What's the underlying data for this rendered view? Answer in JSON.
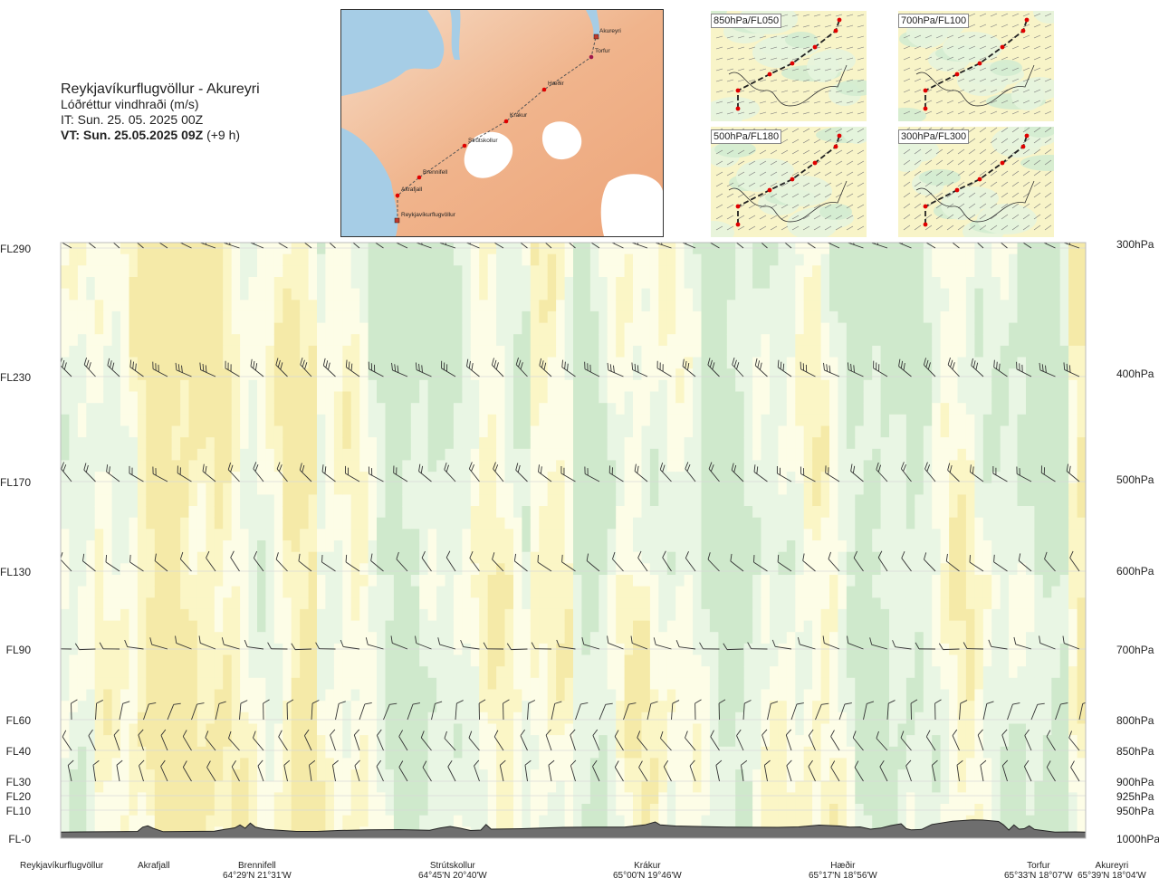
{
  "header": {
    "route": "Reykjavíkurflugvöllur - Akureyri",
    "param": "Lóðréttur vindhraði (m/s)",
    "it": "IT: Sun. 25. 05. 2025 00Z",
    "vt": "VT: Sun. 25.05.2025 09Z",
    "vt_offset": "(+9 h)"
  },
  "route_map": {
    "stations": [
      "Akureyri",
      "Torfur",
      "Hæðir",
      "Krákur",
      "Strútskollur",
      "Brennifell",
      "Akrafjall",
      "Reykjavíkurflugvöllur"
    ],
    "colors": {
      "sea": "#a6cde6",
      "land": "#f0b48c",
      "ice": "#ffffff",
      "track": "#555555",
      "waypoint": "#e00000"
    }
  },
  "mini_maps": [
    {
      "label": "850hPa/FL050"
    },
    {
      "label": "700hPa/FL100"
    },
    {
      "label": "500hPa/FL180"
    },
    {
      "label": "300hPa/FL300"
    }
  ],
  "chart_data": {
    "type": "heatmap",
    "title": "Reykjavíkurflugvöllur - Akureyri",
    "variable": "Lóðréttur vindhraði (m/s)",
    "colors": {
      "strong_up": "#cfe9cc",
      "weak_up": "#e9f6e4",
      "neutral": "#fdfde7",
      "weak_down": "#fbf6c6",
      "down": "#f5eaa8",
      "terrain": "#6e6e6e"
    },
    "flight_levels": [
      {
        "fl": "FL290",
        "hpa": "300hPa"
      },
      {
        "fl": "FL230",
        "hpa": "400hPa"
      },
      {
        "fl": "FL170",
        "hpa": "500hPa"
      },
      {
        "fl": "FL130",
        "hpa": "600hPa"
      },
      {
        "fl": "FL90",
        "hpa": "700hPa"
      },
      {
        "fl": "FL60",
        "hpa": "800hPa"
      },
      {
        "fl": "FL40",
        "hpa": "850hPa"
      },
      {
        "fl": "FL30",
        "hpa": "900hPa"
      },
      {
        "fl": "FL20",
        "hpa": "925hPa"
      },
      {
        "fl": "FL10",
        "hpa": "950hPa"
      },
      {
        "fl": "FL-0",
        "hpa": "1000hPa"
      }
    ],
    "waypoints": [
      {
        "name": "Reykjavíkurflugvöllur",
        "coord": ""
      },
      {
        "name": "Akrafjall",
        "coord": ""
      },
      {
        "name": "Brennifell",
        "coord": "64°29'N 21°31'W"
      },
      {
        "name": "Strútskollur",
        "coord": "64°45'N 20°40'W"
      },
      {
        "name": "Krákur",
        "coord": "65°00'N 19°46'W"
      },
      {
        "name": "Hæðir",
        "coord": "65°17'N 18°56'W"
      },
      {
        "name": "Torfur",
        "coord": "65°33'N 18°07'W"
      },
      {
        "name": "Akureyri",
        "coord": "65°39'N 18°04'W"
      }
    ],
    "terrain_profile_fl": [
      [
        0,
        0.3
      ],
      [
        0.02,
        0.4
      ],
      [
        0.05,
        0.5
      ],
      [
        0.075,
        0.6
      ],
      [
        0.08,
        2.5
      ],
      [
        0.085,
        3.1
      ],
      [
        0.09,
        2
      ],
      [
        0.1,
        0.5
      ],
      [
        0.15,
        0.7
      ],
      [
        0.16,
        1.5
      ],
      [
        0.17,
        2.2
      ],
      [
        0.175,
        3.5
      ],
      [
        0.18,
        2
      ],
      [
        0.185,
        4.3
      ],
      [
        0.19,
        2.5
      ],
      [
        0.2,
        1.5
      ],
      [
        0.21,
        1.2
      ],
      [
        0.23,
        0.6
      ],
      [
        0.25,
        0.6
      ],
      [
        0.27,
        1
      ],
      [
        0.3,
        1.3
      ],
      [
        0.33,
        1.4
      ],
      [
        0.36,
        1.1
      ],
      [
        0.37,
        2.1
      ],
      [
        0.38,
        2.8
      ],
      [
        0.39,
        2
      ],
      [
        0.4,
        1
      ],
      [
        0.41,
        1.2
      ],
      [
        0.415,
        3.7
      ],
      [
        0.42,
        1.6
      ],
      [
        0.45,
        1.8
      ],
      [
        0.49,
        2.4
      ],
      [
        0.52,
        2.5
      ],
      [
        0.55,
        2.5
      ],
      [
        0.56,
        3
      ],
      [
        0.57,
        3.5
      ],
      [
        0.58,
        4.8
      ],
      [
        0.585,
        3.5
      ],
      [
        0.6,
        3
      ],
      [
        0.62,
        2.8
      ],
      [
        0.65,
        2.5
      ],
      [
        0.7,
        2.4
      ],
      [
        0.72,
        2.6
      ],
      [
        0.74,
        3.4
      ],
      [
        0.76,
        3
      ],
      [
        0.77,
        2.5
      ],
      [
        0.78,
        2.6
      ],
      [
        0.79,
        1.6
      ],
      [
        0.8,
        2.1
      ],
      [
        0.81,
        3.2
      ],
      [
        0.82,
        4
      ],
      [
        0.825,
        1.8
      ],
      [
        0.83,
        1.3
      ],
      [
        0.84,
        1.5
      ],
      [
        0.85,
        3.7
      ],
      [
        0.87,
        5.1
      ],
      [
        0.89,
        5.7
      ],
      [
        0.9,
        5.6
      ],
      [
        0.915,
        5
      ],
      [
        0.92,
        3.5
      ],
      [
        0.925,
        1.2
      ],
      [
        0.93,
        3.5
      ],
      [
        0.935,
        1.6
      ],
      [
        0.94,
        1.8
      ],
      [
        0.945,
        3.1
      ],
      [
        0.95,
        1.5
      ],
      [
        0.97,
        0.3
      ],
      [
        0.99,
        0.4
      ],
      [
        1,
        0.3
      ]
    ],
    "dominant_up_x_ranges": [
      [
        0.25,
        0.46
      ],
      [
        0.5,
        0.98
      ]
    ],
    "dominant_down_x_ranges": [
      [
        0.03,
        0.25
      ],
      [
        0.46,
        0.5
      ],
      [
        0.98,
        1.0
      ]
    ],
    "grid": true
  }
}
